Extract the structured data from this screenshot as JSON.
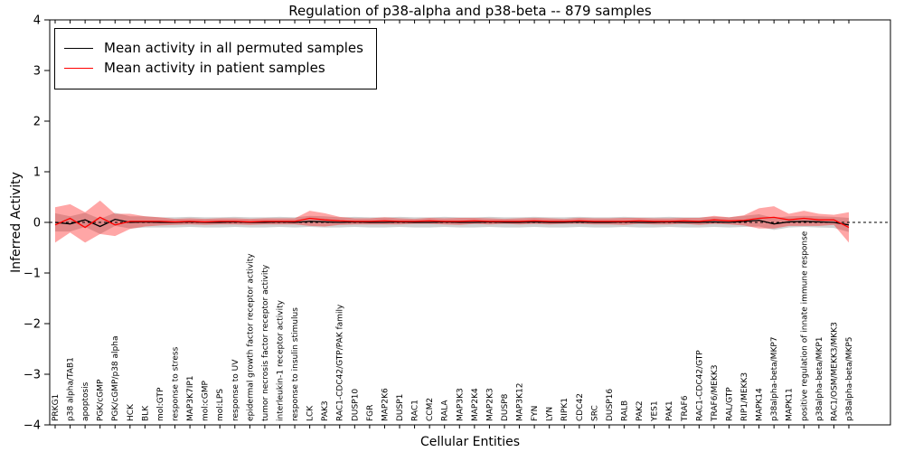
{
  "chart_data": {
    "type": "line",
    "title": "Regulation of p38-alpha and p38-beta -- 879 samples",
    "xlabel": "Cellular Entities",
    "ylabel": "Inferred Activity",
    "ylim": [
      -4,
      4
    ],
    "ytick_values": [
      -4,
      -3,
      -2,
      -1,
      0,
      1,
      2,
      3,
      4
    ],
    "ytick_labels": [
      "−4",
      "−3",
      "−2",
      "−1",
      "0",
      "1",
      "2",
      "3",
      "4"
    ],
    "grid": false,
    "legend_position": "upper-left",
    "legend": [
      {
        "label": "Mean activity in all permuted samples",
        "color": "#000000"
      },
      {
        "label": "Mean activity in patient samples",
        "color": "#ff0000"
      }
    ],
    "categories": [
      "PRKG1",
      "p38 alpha/TAB1",
      "apoptosis",
      "PGK/cGMP",
      "PGK/cGMP/p38 alpha",
      "HCK",
      "BLK",
      "mol:GTP",
      "response to stress",
      "MAP3K7IP1",
      "mol:cGMP",
      "mol:LPS",
      "response to UV",
      "epidermal growth factor receptor activity",
      "tumor necrosis factor receptor activity",
      "interleukin-1 receptor activity",
      "response to insulin stimulus",
      "LCK",
      "PAK3",
      "RAC1-CDC42/GTP/PAK family",
      "DUSP10",
      "FGR",
      "MAP2K6",
      "DUSP1",
      "RAC1",
      "CCM2",
      "RALA",
      "MAP3K3",
      "MAP2K4",
      "MAP2K3",
      "DUSP8",
      "MAP3K12",
      "FYN",
      "LYN",
      "RIPK1",
      "CDC42",
      "SRC",
      "DUSP16",
      "RALB",
      "PAK2",
      "YES1",
      "PAK1",
      "TRAF6",
      "RAC1-CDC42/GTP",
      "TRAF6/MEKK3",
      "RAL/GTP",
      "RIP1/MEKK3",
      "MAPK14",
      "p38alpha-beta/MKP7",
      "MAPK11",
      "positive regulation of innate immune response",
      "p38alpha-beta/MKP1",
      "RAC1/OSM/MEKK3/MKK3",
      "p38alpha-beta/MKP5"
    ],
    "series": [
      {
        "name": "Mean activity in all permuted samples",
        "color": "#000000",
        "values": [
          0.0,
          -0.03,
          0.05,
          -0.08,
          0.06,
          0.0,
          0.01,
          0.0,
          0.0,
          0.01,
          0.0,
          0.0,
          0.01,
          0.0,
          0.0,
          0.01,
          0.0,
          0.02,
          0.01,
          0.0,
          0.01,
          0.0,
          0.0,
          0.01,
          0.0,
          0.0,
          0.01,
          0.0,
          0.0,
          0.01,
          0.0,
          0.0,
          0.01,
          0.0,
          0.0,
          0.01,
          0.0,
          0.0,
          0.01,
          0.0,
          0.0,
          0.01,
          0.0,
          0.0,
          0.01,
          0.0,
          0.02,
          0.04,
          -0.03,
          0.01,
          0.02,
          0.01,
          0.0,
          -0.05
        ]
      },
      {
        "name": "Mean activity in patient samples",
        "color": "#ff0000",
        "values": [
          -0.05,
          0.08,
          -0.1,
          0.1,
          -0.05,
          0.02,
          0.02,
          0.02,
          0.01,
          0.02,
          0.01,
          0.02,
          0.02,
          0.01,
          0.02,
          0.02,
          0.02,
          0.08,
          0.05,
          0.03,
          0.02,
          0.02,
          0.03,
          0.02,
          0.02,
          0.03,
          0.02,
          0.02,
          0.03,
          0.02,
          0.02,
          0.02,
          0.03,
          0.02,
          0.02,
          0.03,
          0.02,
          0.02,
          0.02,
          0.03,
          0.02,
          0.02,
          0.03,
          0.02,
          0.05,
          0.03,
          0.04,
          0.08,
          0.1,
          0.05,
          0.08,
          0.05,
          0.05,
          -0.1
        ]
      }
    ],
    "bands": [
      {
        "name": "permuted-sd-band",
        "color": "#999999",
        "opacity": 0.45,
        "center_series": 0,
        "half_width": [
          0.18,
          0.15,
          0.14,
          0.15,
          0.13,
          0.12,
          0.11,
          0.1,
          0.1,
          0.1,
          0.1,
          0.1,
          0.1,
          0.1,
          0.1,
          0.1,
          0.1,
          0.11,
          0.11,
          0.1,
          0.1,
          0.1,
          0.1,
          0.1,
          0.1,
          0.1,
          0.1,
          0.1,
          0.1,
          0.1,
          0.1,
          0.1,
          0.1,
          0.1,
          0.1,
          0.1,
          0.1,
          0.1,
          0.1,
          0.1,
          0.1,
          0.1,
          0.1,
          0.1,
          0.1,
          0.1,
          0.11,
          0.12,
          0.12,
          0.11,
          0.11,
          0.11,
          0.11,
          0.14
        ]
      },
      {
        "name": "patient-sd-band",
        "color": "#ff0000",
        "opacity": 0.35,
        "center_series": 1,
        "half_width": [
          0.35,
          0.28,
          0.3,
          0.33,
          0.22,
          0.15,
          0.1,
          0.08,
          0.06,
          0.06,
          0.06,
          0.06,
          0.06,
          0.06,
          0.06,
          0.06,
          0.06,
          0.15,
          0.13,
          0.08,
          0.06,
          0.06,
          0.07,
          0.06,
          0.05,
          0.06,
          0.06,
          0.07,
          0.06,
          0.06,
          0.05,
          0.06,
          0.06,
          0.06,
          0.05,
          0.06,
          0.06,
          0.06,
          0.07,
          0.06,
          0.06,
          0.06,
          0.06,
          0.07,
          0.08,
          0.07,
          0.1,
          0.2,
          0.22,
          0.12,
          0.15,
          0.12,
          0.1,
          0.3
        ]
      }
    ],
    "zero_line": {
      "value": 0,
      "style": "dashed",
      "color": "#000000"
    }
  }
}
